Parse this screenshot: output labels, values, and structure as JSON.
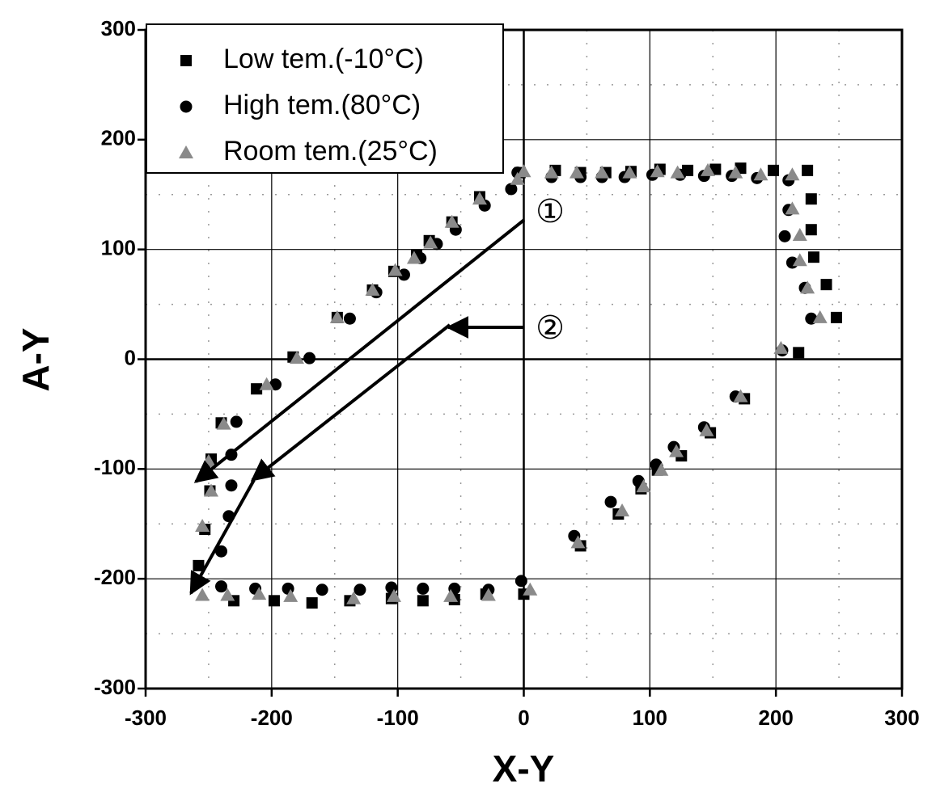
{
  "chart_data": {
    "type": "scatter",
    "x_label": "X-Y",
    "y_label": "A-Y",
    "xlim": [
      -300,
      300
    ],
    "ylim": [
      -300,
      300
    ],
    "xticks": [
      -300,
      -200,
      -100,
      0,
      100,
      200,
      300
    ],
    "yticks": [
      -300,
      -200,
      -100,
      0,
      100,
      200,
      300
    ],
    "grid": true,
    "legend": "upper left",
    "annotations": [
      "①",
      "②"
    ],
    "series": [
      {
        "name": "Low tem.(-10°C)",
        "color": "#000000",
        "marker": "square",
        "x": [
          -3,
          25,
          45,
          65,
          85,
          108,
          130,
          152,
          172,
          198,
          225,
          228,
          228,
          230,
          240,
          248,
          218,
          175,
          148,
          125,
          106,
          93,
          75,
          45,
          -230,
          -198,
          -168,
          -138,
          -105,
          -80,
          -55,
          -30,
          0,
          -258,
          -253,
          -249,
          -248,
          -240,
          -212,
          -183,
          -148,
          -120,
          -103,
          -85,
          -75,
          -57,
          -35
        ],
        "values": [
          170,
          172,
          170,
          170,
          171,
          173,
          172,
          173,
          174,
          172,
          172,
          146,
          118,
          93,
          68,
          38,
          6,
          -36,
          -67,
          -88,
          -101,
          -118,
          -141,
          -170,
          -220,
          -220,
          -222,
          -220,
          -218,
          -220,
          -219,
          -214,
          -214,
          -188,
          -155,
          -120,
          -91,
          -58,
          -27,
          2,
          38,
          63,
          80,
          95,
          108,
          125,
          148
        ]
      },
      {
        "name": "High tem.(80°C)",
        "color": "#000000",
        "marker": "circle",
        "x": [
          -5,
          22,
          45,
          62,
          80,
          102,
          124,
          143,
          165,
          185,
          210,
          210,
          207,
          213,
          223,
          228,
          205,
          168,
          143,
          119,
          105,
          91,
          69,
          40,
          -240,
          -213,
          -187,
          -160,
          -130,
          -105,
          -80,
          -55,
          -28,
          -2,
          -240,
          -234,
          -232,
          -232,
          -228,
          -197,
          -170,
          -138,
          -117,
          -95,
          -82,
          -69,
          -54,
          -31,
          -10
        ],
        "values": [
          170,
          166,
          166,
          166,
          166,
          168,
          168,
          167,
          167,
          165,
          163,
          136,
          112,
          88,
          65,
          37,
          8,
          -34,
          -62,
          -80,
          -96,
          -111,
          -130,
          -161,
          -207,
          -209,
          -209,
          -210,
          -210,
          -208,
          -209,
          -209,
          -210,
          -202,
          -175,
          -143,
          -115,
          -87,
          -57,
          -23,
          1,
          37,
          61,
          77,
          92,
          105,
          118,
          140,
          155
        ]
      },
      {
        "name": "Room tem.(25°C)",
        "color": "#8a8a8a",
        "marker": "triangle",
        "x": [
          0,
          22,
          42,
          62,
          84,
          106,
          122,
          146,
          168,
          188,
          213,
          213,
          219,
          219,
          225,
          235,
          204,
          172,
          145,
          121,
          109,
          95,
          78,
          43,
          -255,
          -235,
          -210,
          -185,
          -135,
          -103,
          -58,
          -28,
          5,
          -255,
          -248,
          -250,
          -238,
          -204,
          -180,
          -148,
          -120,
          -102,
          -87,
          -74,
          -57,
          -35,
          -5
        ],
        "values": [
          171,
          170,
          170,
          170,
          170,
          171,
          170,
          172,
          170,
          168,
          168,
          137,
          113,
          90,
          65,
          38,
          10,
          -34,
          -65,
          -84,
          -101,
          -116,
          -138,
          -167,
          -215,
          -215,
          -214,
          -216,
          -218,
          -216,
          -216,
          -215,
          -210,
          -152,
          -120,
          -93,
          -59,
          -23,
          1,
          38,
          63,
          81,
          92,
          106,
          125,
          146,
          164
        ]
      }
    ]
  }
}
